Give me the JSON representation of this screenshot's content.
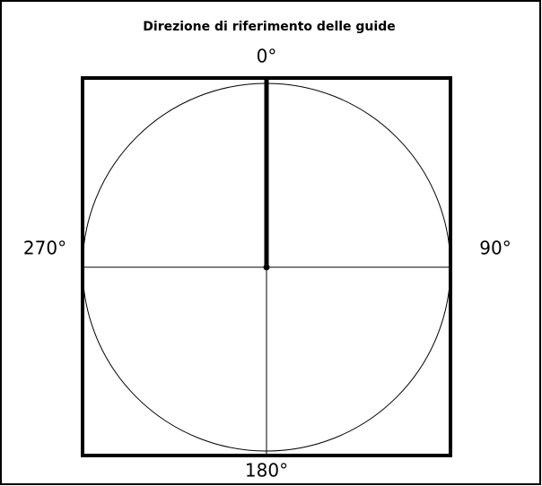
{
  "title": "Direzione di riferimento delle guide",
  "labels": {
    "top": "0°",
    "right": "90°",
    "bottom": "180°",
    "left": "270°"
  }
}
